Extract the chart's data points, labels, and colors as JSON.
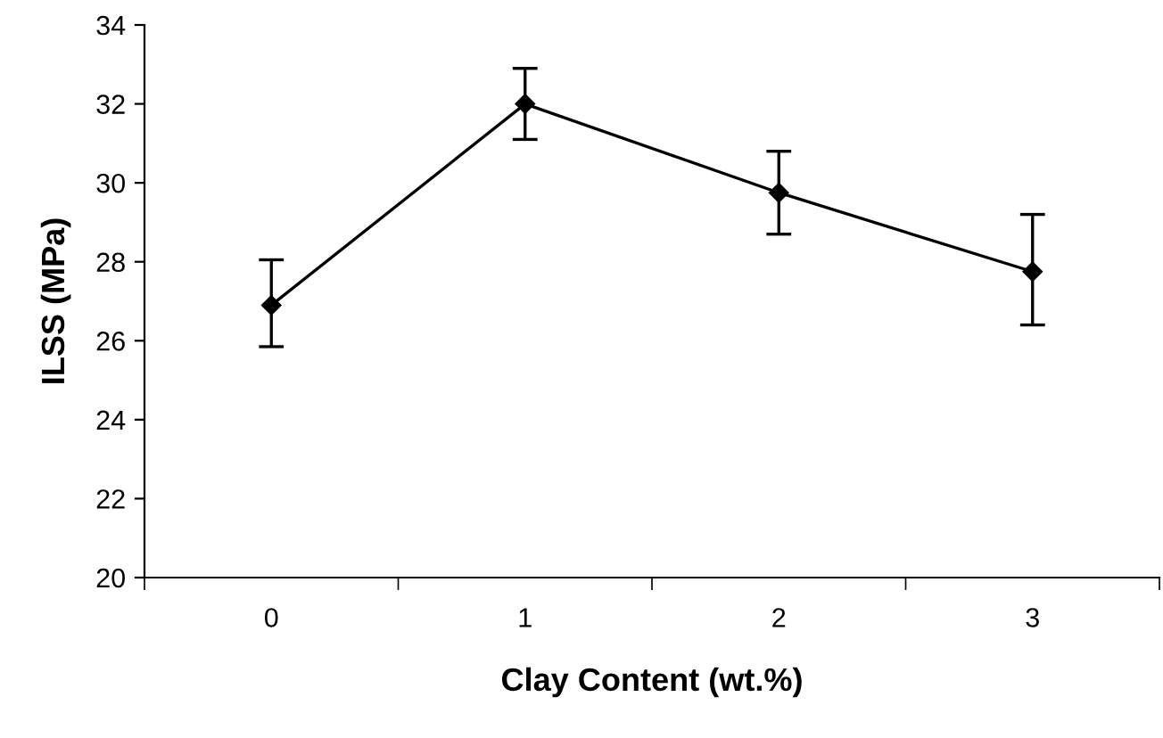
{
  "chart_data": {
    "type": "line",
    "xlabel": "Clay Content (wt.%)",
    "ylabel": "ILSS (MPa)",
    "categories": [
      "0",
      "1",
      "2",
      "3"
    ],
    "series": [
      {
        "color": "#000000",
        "values": [
          26.9,
          32.0,
          29.75,
          27.75
        ],
        "errors": [
          [
            25.85,
            28.05
          ],
          [
            31.1,
            32.9
          ],
          [
            28.7,
            30.8
          ],
          [
            26.4,
            29.2
          ]
        ]
      }
    ],
    "ylim": [
      20,
      34
    ],
    "yticks": [
      20,
      22,
      24,
      26,
      28,
      30,
      32,
      34
    ],
    "grid": false,
    "marker": "diamond",
    "line_style": "solid"
  }
}
